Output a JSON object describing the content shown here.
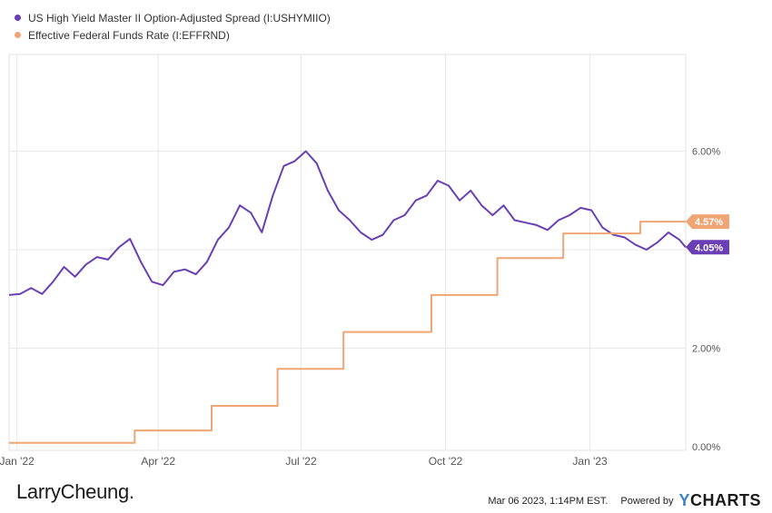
{
  "chart_data": {
    "type": "line",
    "x_ticks": [
      "Jan '22",
      "Apr '22",
      "Jul '22",
      "Oct '22",
      "Jan '23"
    ],
    "y_ticks": [
      "0.00%",
      "2.00%",
      "6.00%"
    ],
    "ylim": [
      0,
      8
    ],
    "grid": true,
    "legend_position": "top-left",
    "series": [
      {
        "name": "US High Yield Master II Option-Adjusted Spread (I:USHYMIIO)",
        "color": "#6a3fb5",
        "end_label": "4.05%",
        "points": [
          [
            "2021-12-27",
            3.08
          ],
          [
            "2022-01-03",
            3.1
          ],
          [
            "2022-01-10",
            3.22
          ],
          [
            "2022-01-17",
            3.1
          ],
          [
            "2022-01-24",
            3.35
          ],
          [
            "2022-01-31",
            3.65
          ],
          [
            "2022-02-07",
            3.45
          ],
          [
            "2022-02-14",
            3.7
          ],
          [
            "2022-02-21",
            3.85
          ],
          [
            "2022-02-28",
            3.8
          ],
          [
            "2022-03-07",
            4.05
          ],
          [
            "2022-03-14",
            4.22
          ],
          [
            "2022-03-21",
            3.75
          ],
          [
            "2022-03-28",
            3.35
          ],
          [
            "2022-04-04",
            3.28
          ],
          [
            "2022-04-11",
            3.55
          ],
          [
            "2022-04-18",
            3.6
          ],
          [
            "2022-04-25",
            3.5
          ],
          [
            "2022-05-02",
            3.75
          ],
          [
            "2022-05-09",
            4.2
          ],
          [
            "2022-05-16",
            4.45
          ],
          [
            "2022-05-23",
            4.9
          ],
          [
            "2022-05-30",
            4.75
          ],
          [
            "2022-06-06",
            4.35
          ],
          [
            "2022-06-13",
            5.1
          ],
          [
            "2022-06-20",
            5.7
          ],
          [
            "2022-06-27",
            5.8
          ],
          [
            "2022-07-04",
            6.0
          ],
          [
            "2022-07-11",
            5.75
          ],
          [
            "2022-07-18",
            5.2
          ],
          [
            "2022-07-25",
            4.8
          ],
          [
            "2022-08-01",
            4.6
          ],
          [
            "2022-08-08",
            4.35
          ],
          [
            "2022-08-15",
            4.2
          ],
          [
            "2022-08-22",
            4.3
          ],
          [
            "2022-08-29",
            4.6
          ],
          [
            "2022-09-05",
            4.7
          ],
          [
            "2022-09-12",
            5.0
          ],
          [
            "2022-09-19",
            5.1
          ],
          [
            "2022-09-26",
            5.4
          ],
          [
            "2022-10-03",
            5.3
          ],
          [
            "2022-10-10",
            5.0
          ],
          [
            "2022-10-17",
            5.2
          ],
          [
            "2022-10-24",
            4.9
          ],
          [
            "2022-10-31",
            4.7
          ],
          [
            "2022-11-07",
            4.9
          ],
          [
            "2022-11-14",
            4.6
          ],
          [
            "2022-11-21",
            4.55
          ],
          [
            "2022-11-28",
            4.5
          ],
          [
            "2022-12-05",
            4.4
          ],
          [
            "2022-12-12",
            4.6
          ],
          [
            "2022-12-19",
            4.7
          ],
          [
            "2022-12-26",
            4.85
          ],
          [
            "2023-01-02",
            4.8
          ],
          [
            "2023-01-09",
            4.45
          ],
          [
            "2023-01-16",
            4.3
          ],
          [
            "2023-01-23",
            4.25
          ],
          [
            "2023-01-30",
            4.1
          ],
          [
            "2023-02-06",
            4.0
          ],
          [
            "2023-02-13",
            4.15
          ],
          [
            "2023-02-20",
            4.35
          ],
          [
            "2023-02-27",
            4.2
          ],
          [
            "2023-03-03",
            4.05
          ]
        ]
      },
      {
        "name": "Effective Federal Funds Rate (I:EFFRND)",
        "color": "#f0a575",
        "end_label": "4.57%",
        "step_points": [
          [
            "2021-12-27",
            0.08
          ],
          [
            "2022-03-17",
            0.33
          ],
          [
            "2022-05-05",
            0.83
          ],
          [
            "2022-06-16",
            1.58
          ],
          [
            "2022-07-28",
            2.33
          ],
          [
            "2022-09-22",
            3.08
          ],
          [
            "2022-11-03",
            3.83
          ],
          [
            "2022-12-15",
            4.33
          ],
          [
            "2023-02-02",
            4.57
          ],
          [
            "2023-03-03",
            4.57
          ]
        ]
      }
    ]
  },
  "footer": {
    "brand": "LarryCheung.",
    "timestamp": "Mar 06 2023, 1:14PM EST.",
    "powered_by": "Powered by",
    "logo_y": "Y",
    "logo_rest": "CHARTS"
  }
}
